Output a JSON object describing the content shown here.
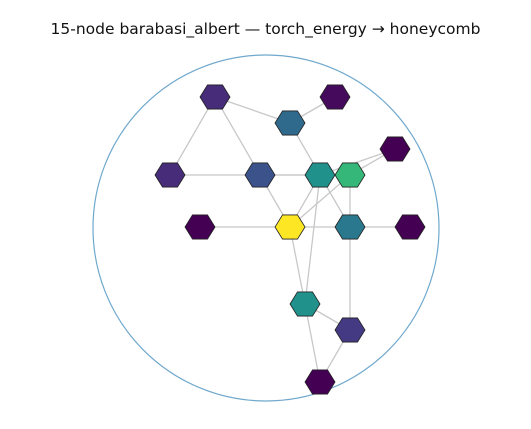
{
  "title": "15-node barabasi_albert — torch_energy → honeycomb",
  "colors": {
    "boundary": "#6fa8cd",
    "edge": "#c8c8c8",
    "node_stroke": "#222222"
  },
  "nodes": [
    {
      "id": "n0",
      "color": "#472c7a"
    },
    {
      "id": "n1",
      "color": "#450a5c"
    },
    {
      "id": "n2",
      "color": "#2f6a8d"
    },
    {
      "id": "n3",
      "color": "#440154"
    },
    {
      "id": "n4",
      "color": "#472c7a"
    },
    {
      "id": "n5",
      "color": "#3b528b"
    },
    {
      "id": "n6",
      "color": "#21918c"
    },
    {
      "id": "n7",
      "color": "#35b779"
    },
    {
      "id": "n8",
      "color": "#440154"
    },
    {
      "id": "n9",
      "color": "#fde725"
    },
    {
      "id": "n10",
      "color": "#2a788e"
    },
    {
      "id": "n11",
      "color": "#440154"
    },
    {
      "id": "n12",
      "color": "#21918c"
    },
    {
      "id": "n13",
      "color": "#443a83"
    },
    {
      "id": "n14",
      "color": "#440154"
    }
  ],
  "edges": [
    [
      "n0",
      "n2"
    ],
    [
      "n0",
      "n4"
    ],
    [
      "n0",
      "n5"
    ],
    [
      "n1",
      "n2"
    ],
    [
      "n2",
      "n6"
    ],
    [
      "n4",
      "n7"
    ],
    [
      "n5",
      "n6"
    ],
    [
      "n5",
      "n9"
    ],
    [
      "n6",
      "n3"
    ],
    [
      "n6",
      "n9"
    ],
    [
      "n6",
      "n10"
    ],
    [
      "n6",
      "n12"
    ],
    [
      "n7",
      "n3"
    ],
    [
      "n7",
      "n10"
    ],
    [
      "n7",
      "n9"
    ],
    [
      "n8",
      "n9"
    ],
    [
      "n9",
      "n10"
    ],
    [
      "n9",
      "n12"
    ],
    [
      "n10",
      "n11"
    ],
    [
      "n10",
      "n13"
    ],
    [
      "n12",
      "n13"
    ],
    [
      "n12",
      "n14"
    ],
    [
      "n13",
      "n14"
    ]
  ]
}
